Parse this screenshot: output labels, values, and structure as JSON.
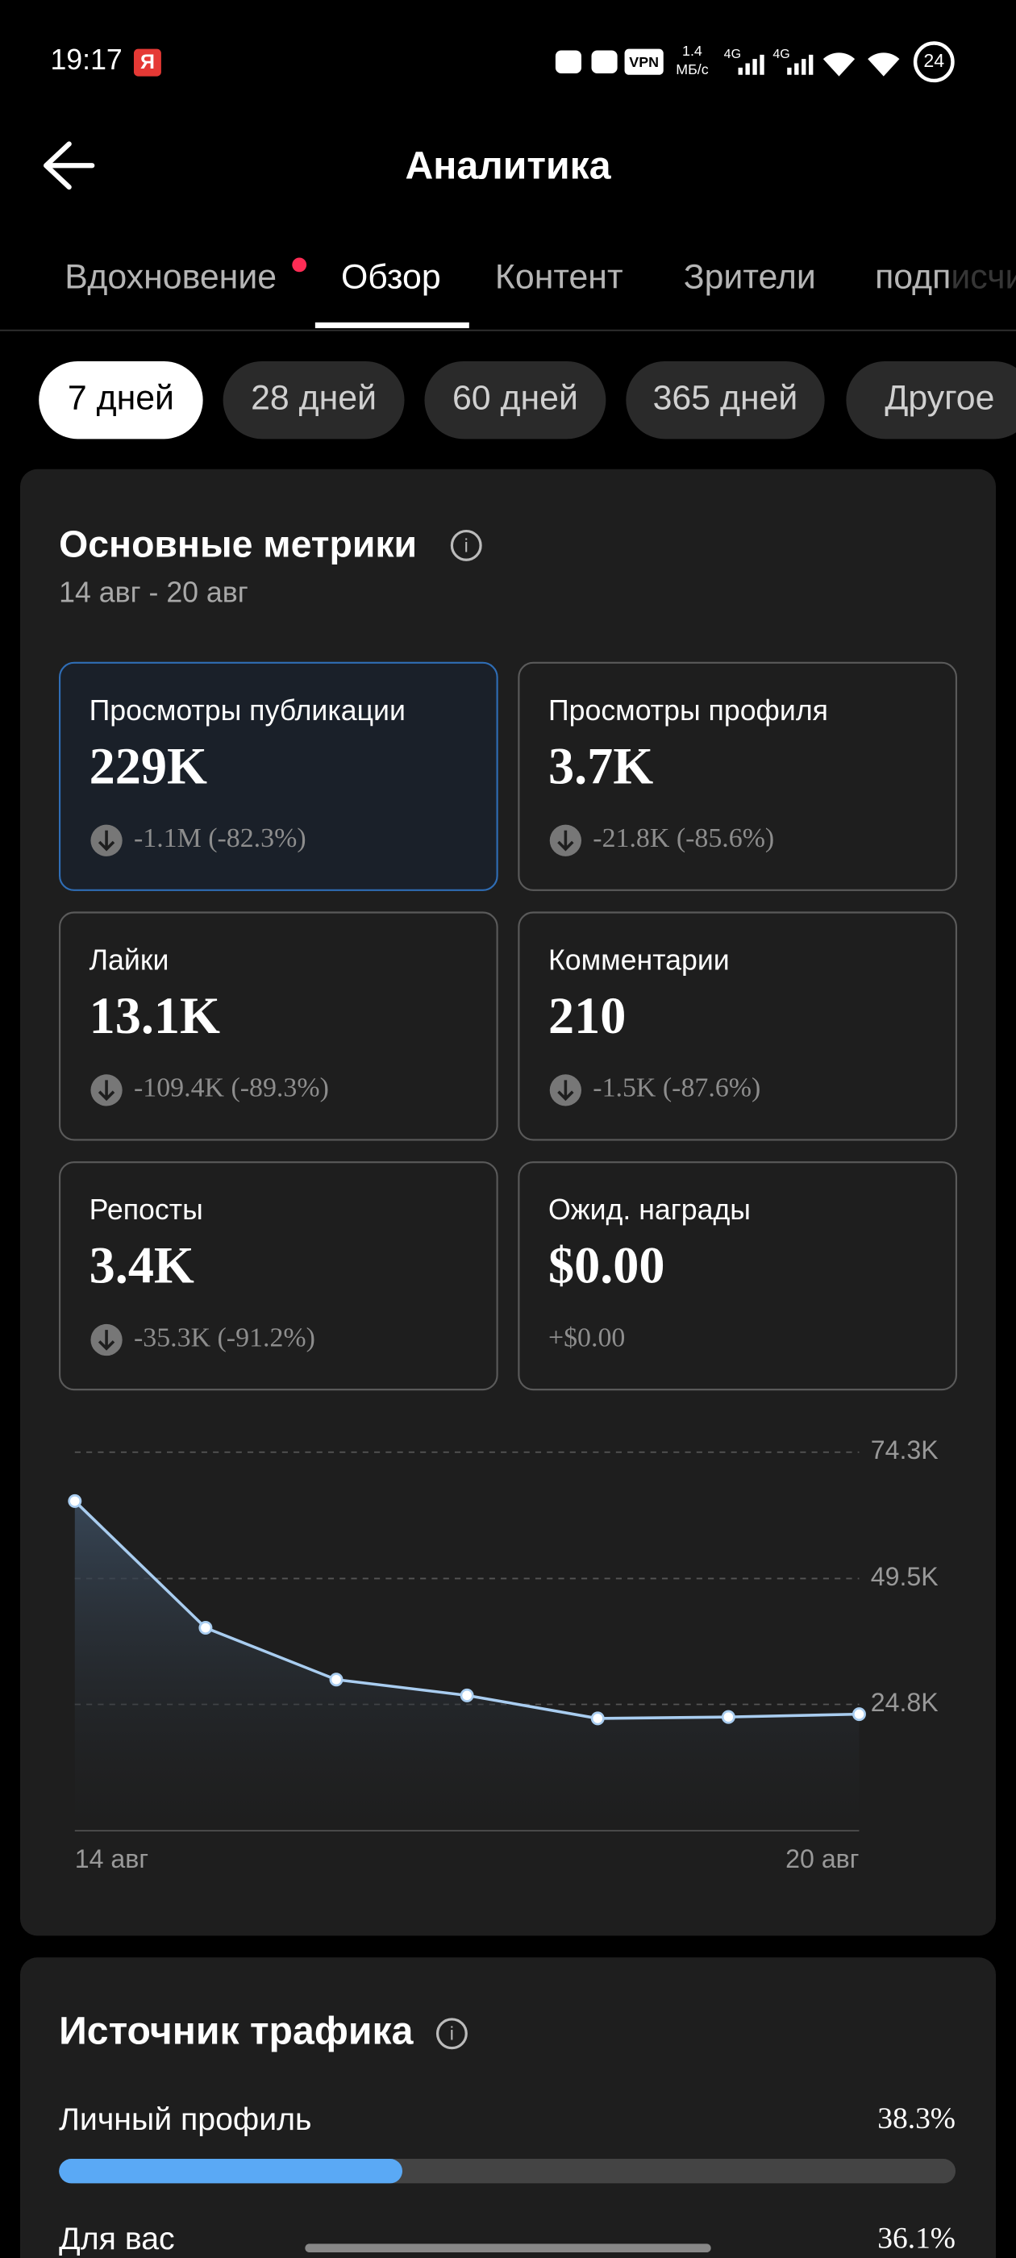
{
  "status_bar": {
    "time": "19:17",
    "app": "Я",
    "vpn": "VPN",
    "speed": "1.4",
    "speed_unit": "МБ/с",
    "network_1": "4G",
    "network_2": "4G",
    "battery": "24"
  },
  "header": {
    "title": "Аналитика"
  },
  "tabs": [
    "Вдохновение",
    "Обзор",
    "Контент",
    "Зрители",
    "подписчики"
  ],
  "periods": [
    "7 дней",
    "28 дней",
    "60 дней",
    "365 дней",
    "Другое"
  ],
  "metrics": {
    "title": "Основные метрики",
    "date_range": "14 авг - 20 авг",
    "cards": [
      {
        "label": "Просмотры публикации",
        "value": "229K",
        "change": "-1.1M (-82.3%)"
      },
      {
        "label": "Просмотры профиля",
        "value": "3.7K",
        "change": "-21.8K (-85.6%)"
      },
      {
        "label": "Лайки",
        "value": "13.1K",
        "change": "-109.4K (-89.3%)"
      },
      {
        "label": "Комментарии",
        "value": "210",
        "change": "-1.5K (-87.6%)"
      },
      {
        "label": "Репосты",
        "value": "3.4K",
        "change": "-35.3K (-91.2%)"
      },
      {
        "label": "Ожид. награды",
        "value": "$0.00",
        "change": "+$0.00"
      }
    ]
  },
  "chart_data": {
    "type": "line",
    "categories": [
      "14 авг",
      null,
      null,
      null,
      null,
      null,
      "20 авг"
    ],
    "values": [
      64700,
      39830,
      29660,
      26560,
      22040,
      22320,
      22880
    ],
    "color": "#a9cdf0",
    "ylim": [
      0,
      74300
    ],
    "yticks": [
      {
        "value": 24800,
        "label": "24.8K"
      },
      {
        "value": 49500,
        "label": "49.5K"
      },
      {
        "value": 74300,
        "label": "74.3K"
      }
    ],
    "grid": true
  },
  "traffic": {
    "title": "Источник трафика",
    "color": "#5aa9f5",
    "sources": [
      {
        "name": "Личный профиль",
        "value": 38.3,
        "label": "38.3%"
      },
      {
        "name": "Для вас",
        "value": 36.1,
        "label": "36.1%"
      }
    ]
  }
}
